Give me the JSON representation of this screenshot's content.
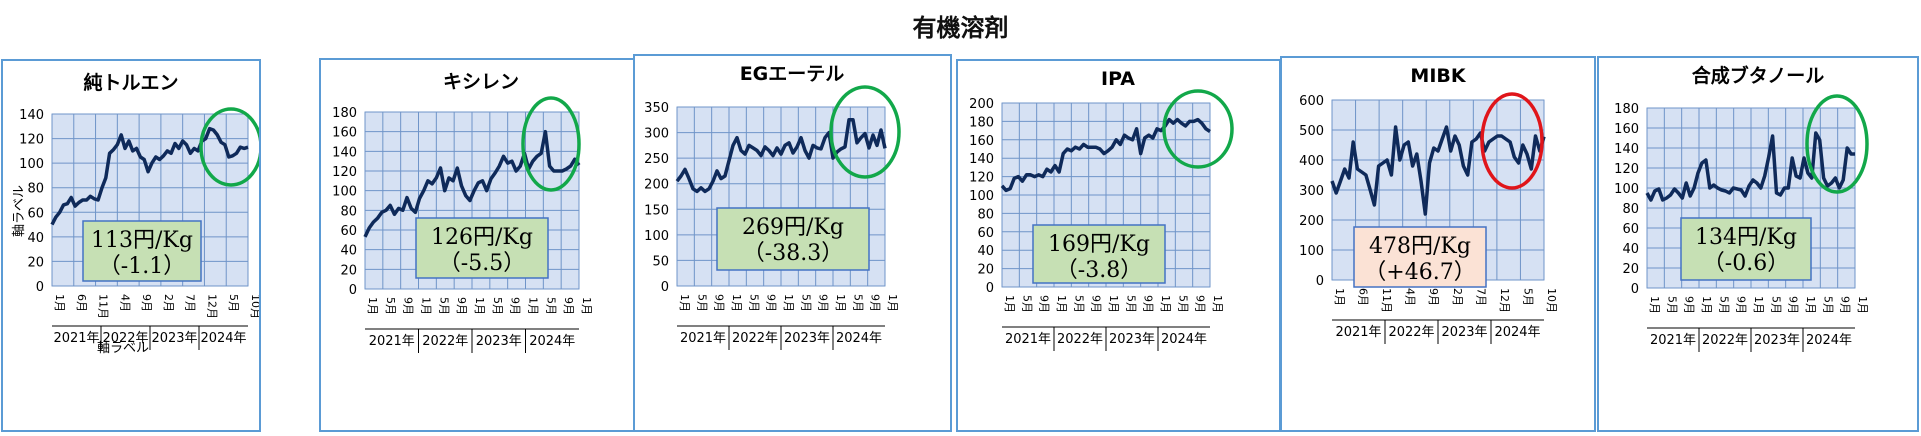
{
  "title": "有機溶剤",
  "stray_axis_label": "軸ラベル",
  "stray_axis_label_bottom": "軸ラベル",
  "colors": {
    "line": "#0f2a5a",
    "plot_bg": "#d6e1f3",
    "green_circle": "#12a84a",
    "red_circle": "#e0151a",
    "green_box": "#c6e0b4",
    "pink_box": "#fbe2d5"
  },
  "chart_data": [
    {
      "type": "line",
      "title": "純トルエン",
      "ylim": [
        0,
        140
      ],
      "yticks": [
        0,
        20,
        40,
        60,
        80,
        100,
        120,
        140
      ],
      "xticks": [
        "1月",
        "6月",
        "11月",
        "4月",
        "9月",
        "2月",
        "7月",
        "12月",
        "5月",
        "10月"
      ],
      "years": [
        "2021年",
        "2022年",
        "2023年",
        "2024年"
      ],
      "price_label": "113円/Kg",
      "change_label": "（-1.1）",
      "highlight": "green",
      "box": "green",
      "values": [
        50,
        56,
        60,
        66,
        67,
        72,
        65,
        68,
        70,
        70,
        73,
        71,
        70,
        80,
        88,
        108,
        111,
        115,
        123,
        112,
        118,
        110,
        112,
        105,
        103,
        93,
        100,
        105,
        103,
        106,
        110,
        108,
        116,
        112,
        118,
        115,
        108,
        112,
        110,
        118,
        120,
        128,
        127,
        123,
        117,
        115,
        105,
        106,
        108,
        113,
        112,
        113
      ]
    },
    {
      "type": "line",
      "title": "キシレン",
      "ylim": [
        0,
        180
      ],
      "yticks": [
        0,
        20,
        40,
        60,
        80,
        100,
        120,
        140,
        160,
        180
      ],
      "xticks": [
        "1月",
        "5月",
        "9月",
        "1月",
        "5月",
        "9月",
        "1月",
        "5月",
        "9月",
        "1月",
        "5月",
        "9月",
        "1月"
      ],
      "years": [
        "2021年",
        "2022年",
        "2023年",
        "2024年"
      ],
      "price_label": "126円/Kg",
      "change_label": "（-5.5）",
      "highlight": "green",
      "box": "green",
      "values": [
        53,
        62,
        68,
        72,
        78,
        80,
        85,
        76,
        82,
        80,
        93,
        82,
        78,
        92,
        100,
        110,
        107,
        113,
        123,
        100,
        113,
        110,
        123,
        105,
        95,
        90,
        100,
        108,
        110,
        100,
        112,
        118,
        125,
        135,
        128,
        130,
        120,
        125,
        138,
        122,
        130,
        135,
        138,
        160,
        125,
        120,
        120,
        120,
        122,
        125,
        132,
        126
      ]
    },
    {
      "type": "line",
      "title": "EGエーテル",
      "ylim": [
        0,
        350
      ],
      "yticks": [
        0,
        50,
        100,
        150,
        200,
        250,
        300,
        350
      ],
      "xticks": [
        "1月",
        "5月",
        "9月",
        "1月",
        "5月",
        "9月",
        "1月",
        "5月",
        "9月",
        "1月",
        "5月",
        "9月",
        "1月"
      ],
      "years": [
        "2021年",
        "2022年",
        "2023年",
        "2024年"
      ],
      "price_label": "269円/Kg",
      "change_label": "（-38.3）",
      "highlight": "green",
      "box": "green",
      "values": [
        205,
        215,
        228,
        210,
        190,
        185,
        192,
        185,
        190,
        205,
        225,
        210,
        215,
        245,
        275,
        290,
        265,
        258,
        275,
        270,
        265,
        255,
        272,
        265,
        255,
        270,
        258,
        275,
        280,
        260,
        272,
        290,
        265,
        250,
        275,
        270,
        268,
        290,
        300,
        250,
        262,
        268,
        272,
        325,
        325,
        280,
        290,
        298,
        270,
        295,
        275,
        305,
        269
      ]
    },
    {
      "type": "line",
      "title": "IPA",
      "ylim": [
        0,
        200
      ],
      "yticks": [
        0,
        20,
        40,
        60,
        80,
        100,
        120,
        140,
        160,
        180,
        200
      ],
      "xticks": [
        "1月",
        "5月",
        "9月",
        "1月",
        "5月",
        "9月",
        "1月",
        "5月",
        "9月",
        "1月",
        "5月",
        "9月",
        "1月"
      ],
      "years": [
        "2021年",
        "2022年",
        "2023年",
        "2024年"
      ],
      "price_label": "169円/Kg",
      "change_label": "（-3.8）",
      "highlight": "green",
      "box": "green",
      "values": [
        110,
        105,
        107,
        118,
        120,
        115,
        122,
        122,
        120,
        122,
        120,
        128,
        125,
        132,
        125,
        145,
        150,
        148,
        152,
        150,
        155,
        152,
        152,
        152,
        150,
        145,
        148,
        152,
        160,
        155,
        165,
        162,
        160,
        172,
        145,
        162,
        165,
        162,
        172,
        170,
        175,
        182,
        178,
        182,
        178,
        175,
        180,
        180,
        182,
        178,
        172,
        169
      ]
    },
    {
      "type": "line",
      "title": "MIBK",
      "ylim": [
        0,
        600
      ],
      "yticks": [
        0,
        100,
        200,
        300,
        400,
        500,
        600
      ],
      "xticks": [
        "1月",
        "6月",
        "11月",
        "4月",
        "9月",
        "2月",
        "7月",
        "12月",
        "5月",
        "10月"
      ],
      "years": [
        "2021年",
        "2022年",
        "2023年",
        "2024年"
      ],
      "price_label": "478円/Kg",
      "change_label": "（+46.7）",
      "highlight": "red",
      "box": "pink",
      "values": [
        330,
        290,
        330,
        370,
        340,
        460,
        370,
        360,
        350,
        300,
        250,
        380,
        390,
        400,
        350,
        510,
        400,
        450,
        460,
        380,
        420,
        330,
        220,
        390,
        440,
        430,
        470,
        510,
        430,
        480,
        450,
        380,
        350,
        460,
        470,
        490,
        430,
        460,
        470,
        480,
        480,
        470,
        460,
        410,
        390,
        450,
        420,
        370,
        480,
        430,
        478
      ]
    },
    {
      "type": "line",
      "title": "合成ブタノール",
      "ylim": [
        0,
        180
      ],
      "yticks": [
        0,
        20,
        40,
        60,
        80,
        100,
        120,
        140,
        160,
        180
      ],
      "xticks": [
        "1月",
        "5月",
        "9月",
        "1月",
        "5月",
        "9月",
        "1月",
        "5月",
        "9月",
        "1月",
        "5月",
        "9月",
        "1月"
      ],
      "years": [
        "2021年",
        "2022年",
        "2023年",
        "2024年"
      ],
      "price_label": "134円/Kg",
      "change_label": "（-0.6）",
      "highlight": "green",
      "box": "green",
      "values": [
        95,
        88,
        97,
        99,
        88,
        90,
        93,
        99,
        95,
        90,
        105,
        92,
        100,
        115,
        125,
        128,
        100,
        103,
        100,
        98,
        97,
        95,
        100,
        99,
        98,
        92,
        102,
        108,
        105,
        100,
        112,
        131,
        152,
        95,
        93,
        100,
        100,
        130,
        112,
        110,
        130,
        115,
        110,
        155,
        148,
        110,
        102,
        105,
        110,
        100,
        108,
        140,
        134,
        134
      ]
    }
  ]
}
